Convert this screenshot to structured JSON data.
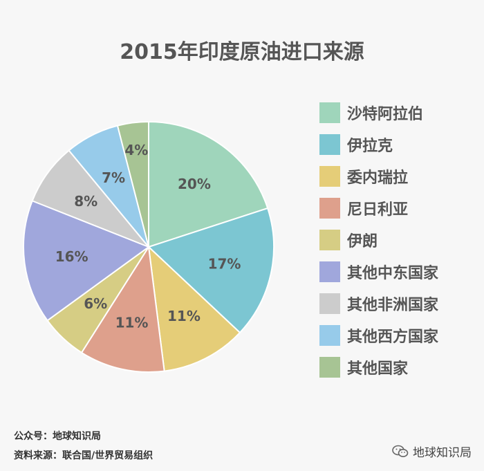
{
  "chart_data": {
    "type": "pie",
    "title": "2015年印度原油进口来源",
    "legend_position": "right",
    "slices": [
      {
        "name": "沙特阿拉伯",
        "value": 20,
        "label": "20%",
        "color": "#9fd5bb"
      },
      {
        "name": "伊拉克",
        "value": 17,
        "label": "17%",
        "color": "#7cc6d2"
      },
      {
        "name": "委内瑞拉",
        "value": 11,
        "label": "11%",
        "color": "#e5cd78"
      },
      {
        "name": "尼日利亚",
        "value": 11,
        "label": "11%",
        "color": "#dea08c"
      },
      {
        "name": "伊朗",
        "value": 6,
        "label": "6%",
        "color": "#d6cd84"
      },
      {
        "name": "其他中东国家",
        "value": 16,
        "label": "16%",
        "color": "#a0a7dc"
      },
      {
        "name": "其他非洲国家",
        "value": 8,
        "label": "8%",
        "color": "#cccccc"
      },
      {
        "name": "其他西方国家",
        "value": 7,
        "label": "7%",
        "color": "#97cbea"
      },
      {
        "name": "其他国家",
        "value": 4,
        "label": "4%",
        "color": "#a7c494"
      }
    ]
  },
  "footer": {
    "account": "公众号：地球知识局",
    "source": "资料来源：联合国/世界贸易组织"
  },
  "brand": {
    "name": "地球知识局",
    "icon": "wechat-icon"
  }
}
